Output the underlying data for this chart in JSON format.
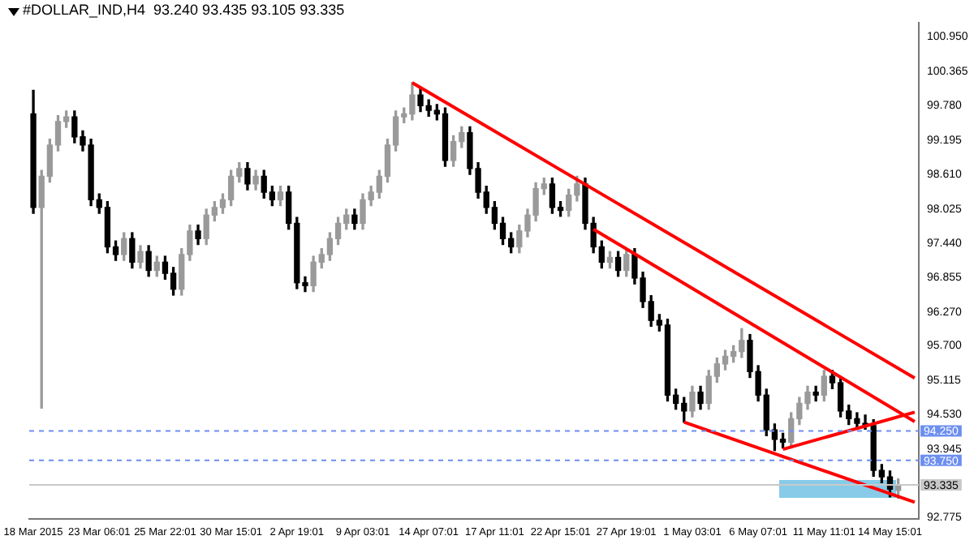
{
  "chart_data": {
    "type": "candlestick",
    "title": "#DOLLAR_IND,H4  93.240 93.435 93.105 93.335",
    "categories": [
      "18 Mar 2015",
      null,
      null,
      null,
      null,
      null,
      null,
      null,
      "23 Mar 06:01",
      null,
      null,
      null,
      null,
      null,
      null,
      null,
      "25 Mar 22:01",
      null,
      null,
      null,
      null,
      null,
      null,
      null,
      "30 Mar 15:01",
      null,
      null,
      null,
      null,
      null,
      null,
      null,
      "2 Apr 19:01",
      null,
      null,
      null,
      null,
      null,
      null,
      null,
      "9 Apr 03:01",
      null,
      null,
      null,
      null,
      null,
      null,
      null,
      "14 Apr 07:01",
      null,
      null,
      null,
      null,
      null,
      null,
      null,
      "17 Apr 11:01",
      null,
      null,
      null,
      null,
      null,
      null,
      null,
      "22 Apr 15:01",
      null,
      null,
      null,
      null,
      null,
      null,
      null,
      "27 Apr 19:01",
      null,
      null,
      null,
      null,
      null,
      null,
      null,
      "1 May 03:01",
      null,
      null,
      null,
      null,
      null,
      null,
      null,
      "6 May 07:01",
      null,
      null,
      null,
      null,
      null,
      null,
      null,
      "11 May 11:01",
      null,
      null,
      null,
      null,
      null,
      null,
      null,
      "14 May 15:01",
      null,
      null,
      null
    ],
    "ohlc": [
      [
        99.64,
        100.04,
        97.95,
        98.05
      ],
      [
        98.05,
        98.68,
        94.64,
        98.58
      ],
      [
        98.58,
        99.21,
        98.48,
        99.11
      ],
      [
        99.11,
        99.61,
        99.01,
        99.51
      ],
      [
        99.51,
        99.69,
        99.41,
        99.59
      ],
      [
        99.59,
        99.69,
        99.15,
        99.25
      ],
      [
        99.25,
        99.35,
        99.01,
        99.11
      ],
      [
        99.11,
        99.21,
        98.08,
        98.18
      ],
      [
        98.18,
        98.28,
        97.95,
        98.05
      ],
      [
        98.05,
        98.15,
        97.28,
        97.38
      ],
      [
        97.38,
        97.48,
        97.15,
        97.25
      ],
      [
        97.25,
        97.62,
        97.15,
        97.52
      ],
      [
        97.52,
        97.62,
        97.02,
        97.12
      ],
      [
        97.12,
        97.4,
        97.02,
        97.3
      ],
      [
        97.3,
        97.4,
        96.88,
        96.98
      ],
      [
        96.98,
        97.22,
        96.88,
        97.12
      ],
      [
        97.12,
        97.22,
        96.83,
        96.93
      ],
      [
        96.93,
        97.03,
        96.56,
        96.66
      ],
      [
        96.66,
        97.35,
        96.56,
        97.25
      ],
      [
        97.25,
        97.75,
        97.15,
        97.65
      ],
      [
        97.65,
        97.75,
        97.42,
        97.52
      ],
      [
        97.52,
        98.02,
        97.42,
        97.92
      ],
      [
        97.92,
        98.15,
        97.82,
        98.05
      ],
      [
        98.05,
        98.28,
        97.95,
        98.18
      ],
      [
        98.18,
        98.68,
        98.08,
        98.58
      ],
      [
        98.58,
        98.81,
        98.48,
        98.71
      ],
      [
        98.71,
        98.81,
        98.35,
        98.45
      ],
      [
        98.45,
        98.68,
        98.35,
        98.58
      ],
      [
        98.58,
        98.68,
        98.21,
        98.31
      ],
      [
        98.31,
        98.41,
        98.08,
        98.18
      ],
      [
        98.18,
        98.41,
        98.08,
        98.31
      ],
      [
        98.31,
        98.41,
        97.68,
        97.78
      ],
      [
        97.78,
        97.88,
        96.67,
        96.77
      ],
      [
        96.77,
        96.87,
        96.62,
        96.72
      ],
      [
        96.72,
        97.22,
        96.62,
        97.12
      ],
      [
        97.12,
        97.35,
        97.02,
        97.25
      ],
      [
        97.25,
        97.62,
        97.15,
        97.52
      ],
      [
        97.52,
        97.88,
        97.42,
        97.78
      ],
      [
        97.78,
        98.02,
        97.68,
        97.92
      ],
      [
        97.92,
        98.02,
        97.68,
        97.78
      ],
      [
        97.78,
        98.28,
        97.68,
        98.18
      ],
      [
        98.18,
        98.41,
        98.08,
        98.31
      ],
      [
        98.31,
        98.68,
        98.21,
        98.58
      ],
      [
        98.58,
        99.21,
        98.48,
        99.11
      ],
      [
        99.11,
        99.69,
        99.01,
        99.59
      ],
      [
        99.59,
        99.74,
        99.49,
        99.64
      ],
      [
        99.64,
        100.17,
        99.54,
        99.96
      ],
      [
        99.96,
        100.06,
        99.68,
        99.78
      ],
      [
        99.78,
        99.88,
        99.6,
        99.7
      ],
      [
        99.7,
        99.8,
        99.54,
        99.64
      ],
      [
        99.64,
        99.74,
        98.75,
        98.85
      ],
      [
        98.85,
        99.27,
        98.75,
        99.17
      ],
      [
        99.17,
        99.42,
        99.07,
        99.32
      ],
      [
        99.32,
        99.42,
        98.61,
        98.71
      ],
      [
        98.71,
        98.81,
        98.21,
        98.31
      ],
      [
        98.31,
        98.41,
        97.95,
        98.05
      ],
      [
        98.05,
        98.15,
        97.68,
        97.78
      ],
      [
        97.78,
        97.88,
        97.42,
        97.52
      ],
      [
        97.52,
        97.62,
        97.28,
        97.38
      ],
      [
        97.38,
        97.75,
        97.28,
        97.65
      ],
      [
        97.65,
        98.02,
        97.55,
        97.92
      ],
      [
        97.92,
        98.47,
        97.82,
        98.37
      ],
      [
        98.37,
        98.55,
        98.27,
        98.45
      ],
      [
        98.45,
        98.55,
        97.95,
        98.05
      ],
      [
        98.05,
        98.15,
        97.9,
        98.0
      ],
      [
        98.0,
        98.36,
        97.9,
        98.26
      ],
      [
        98.26,
        98.58,
        98.16,
        98.45
      ],
      [
        98.45,
        98.55,
        97.68,
        97.78
      ],
      [
        97.78,
        97.88,
        97.28,
        97.38
      ],
      [
        97.38,
        97.48,
        97.02,
        97.12
      ],
      [
        97.12,
        97.3,
        97.02,
        97.2
      ],
      [
        97.2,
        97.3,
        96.88,
        96.98
      ],
      [
        96.98,
        97.35,
        96.88,
        97.25
      ],
      [
        97.25,
        97.35,
        96.75,
        96.85
      ],
      [
        96.85,
        96.95,
        96.35,
        96.45
      ],
      [
        96.45,
        96.55,
        96.03,
        96.13
      ],
      [
        96.13,
        96.23,
        95.95,
        96.05
      ],
      [
        96.05,
        96.15,
        94.76,
        94.86
      ],
      [
        94.86,
        94.96,
        94.62,
        94.72
      ],
      [
        94.72,
        94.82,
        94.4,
        94.59
      ],
      [
        94.59,
        95.01,
        94.49,
        94.91
      ],
      [
        94.91,
        95.01,
        94.62,
        94.72
      ],
      [
        94.72,
        95.28,
        94.62,
        95.18
      ],
      [
        95.18,
        95.49,
        95.08,
        95.39
      ],
      [
        95.39,
        95.62,
        95.29,
        95.52
      ],
      [
        95.52,
        95.7,
        95.42,
        95.6
      ],
      [
        95.6,
        95.99,
        95.5,
        95.79
      ],
      [
        95.79,
        95.89,
        95.16,
        95.26
      ],
      [
        95.26,
        95.36,
        94.76,
        94.86
      ],
      [
        94.86,
        94.96,
        94.17,
        94.27
      ],
      [
        94.27,
        94.37,
        93.92,
        94.11
      ],
      [
        94.11,
        94.21,
        93.96,
        94.06
      ],
      [
        94.06,
        94.56,
        93.96,
        94.46
      ],
      [
        94.46,
        94.82,
        94.36,
        94.72
      ],
      [
        94.72,
        95.01,
        94.62,
        94.91
      ],
      [
        94.91,
        95.01,
        94.76,
        94.86
      ],
      [
        94.86,
        95.28,
        94.76,
        95.18
      ],
      [
        95.18,
        95.28,
        94.97,
        95.07
      ],
      [
        95.07,
        95.17,
        94.49,
        94.59
      ],
      [
        94.59,
        94.69,
        94.36,
        94.46
      ],
      [
        94.46,
        94.56,
        94.28,
        94.38
      ],
      [
        94.38,
        94.52,
        94.28,
        94.34
      ],
      [
        94.34,
        94.44,
        93.48,
        93.58
      ],
      [
        93.58,
        93.68,
        93.37,
        93.47
      ],
      [
        93.47,
        93.57,
        93.13,
        93.26
      ],
      [
        93.24,
        93.435,
        93.105,
        93.335
      ],
      null,
      null
    ],
    "colors": [
      "#000000",
      "#9a9a9a",
      "#9a9a9a",
      "#9a9a9a",
      "#9a9a9a",
      "#000000",
      "#000000",
      "#000000",
      "#000000",
      "#000000",
      "#000000",
      "#9a9a9a",
      "#000000",
      "#9a9a9a",
      "#000000",
      "#9a9a9a",
      "#000000",
      "#000000",
      "#9a9a9a",
      "#9a9a9a",
      "#000000",
      "#9a9a9a",
      "#9a9a9a",
      "#9a9a9a",
      "#9a9a9a",
      "#9a9a9a",
      "#000000",
      "#9a9a9a",
      "#000000",
      "#000000",
      "#9a9a9a",
      "#000000",
      "#000000",
      "#000000",
      "#9a9a9a",
      "#9a9a9a",
      "#9a9a9a",
      "#9a9a9a",
      "#9a9a9a",
      "#000000",
      "#9a9a9a",
      "#9a9a9a",
      "#9a9a9a",
      "#9a9a9a",
      "#9a9a9a",
      "#9a9a9a",
      "#9a9a9a",
      "#000000",
      "#000000",
      "#000000",
      "#000000",
      "#9a9a9a",
      "#9a9a9a",
      "#000000",
      "#000000",
      "#000000",
      "#000000",
      "#000000",
      "#000000",
      "#9a9a9a",
      "#9a9a9a",
      "#9a9a9a",
      "#9a9a9a",
      "#000000",
      "#000000",
      "#9a9a9a",
      "#9a9a9a",
      "#000000",
      "#000000",
      "#000000",
      "#9a9a9a",
      "#000000",
      "#9a9a9a",
      "#000000",
      "#000000",
      "#000000",
      "#000000",
      "#000000",
      "#000000",
      "#000000",
      "#9a9a9a",
      "#000000",
      "#9a9a9a",
      "#9a9a9a",
      "#9a9a9a",
      "#9a9a9a",
      "#9a9a9a",
      "#000000",
      "#000000",
      "#000000",
      "#000000",
      "#000000",
      "#9a9a9a",
      "#9a9a9a",
      "#9a9a9a",
      "#000000",
      "#9a9a9a",
      "#000000",
      "#000000",
      "#000000",
      "#000000",
      "#000000",
      "#000000",
      "#000000",
      "#000000",
      "#9a9a9a",
      "#000000",
      "#000000"
    ],
    "series": [
      {
        "type": "line",
        "color": "#ff0000",
        "values": [
          null,
          null,
          null,
          null,
          null,
          null,
          null,
          null,
          null,
          null,
          null,
          null,
          null,
          null,
          null,
          null,
          null,
          null,
          null,
          null,
          null,
          null,
          null,
          null,
          null,
          null,
          null,
          null,
          null,
          null,
          null,
          null,
          null,
          null,
          null,
          null,
          null,
          null,
          null,
          null,
          null,
          null,
          null,
          null,
          null,
          null,
          100.17,
          null,
          null,
          null,
          null,
          null,
          null,
          null,
          null,
          null,
          null,
          null,
          null,
          null,
          null,
          null,
          null,
          null,
          null,
          null,
          null,
          null,
          null,
          null,
          null,
          null,
          null,
          null,
          null,
          null,
          null,
          null,
          null,
          null,
          null,
          null,
          null,
          null,
          null,
          null,
          null,
          null,
          null,
          null,
          null,
          null,
          null,
          null,
          null,
          null,
          null,
          null,
          null,
          null,
          null,
          null,
          null,
          null,
          null,
          null,
          null,
          95.15
        ]
      },
      {
        "type": "line",
        "color": "#ff0000",
        "values": [
          null,
          null,
          null,
          null,
          null,
          null,
          null,
          null,
          null,
          null,
          null,
          null,
          null,
          null,
          null,
          null,
          null,
          null,
          null,
          null,
          null,
          null,
          null,
          null,
          null,
          null,
          null,
          null,
          null,
          null,
          null,
          null,
          null,
          null,
          null,
          null,
          null,
          null,
          null,
          null,
          null,
          null,
          null,
          null,
          null,
          null,
          null,
          null,
          null,
          null,
          null,
          null,
          null,
          null,
          null,
          null,
          null,
          null,
          null,
          null,
          null,
          null,
          null,
          null,
          null,
          null,
          null,
          null,
          97.68,
          null,
          null,
          null,
          null,
          null,
          null,
          null,
          null,
          null,
          null,
          null,
          null,
          null,
          null,
          null,
          null,
          null,
          null,
          null,
          null,
          null,
          null,
          null,
          null,
          null,
          null,
          null,
          null,
          null,
          null,
          null,
          null,
          null,
          null,
          null,
          null,
          null,
          null,
          94.41
        ]
      },
      {
        "type": "line",
        "color": "#ff0000",
        "values": [
          null,
          null,
          null,
          null,
          null,
          null,
          null,
          null,
          null,
          null,
          null,
          null,
          null,
          null,
          null,
          null,
          null,
          null,
          null,
          null,
          null,
          null,
          null,
          null,
          null,
          null,
          null,
          null,
          null,
          null,
          null,
          null,
          null,
          null,
          null,
          null,
          null,
          null,
          null,
          null,
          null,
          null,
          null,
          null,
          null,
          null,
          null,
          null,
          null,
          null,
          null,
          null,
          null,
          null,
          null,
          null,
          null,
          null,
          null,
          null,
          null,
          null,
          null,
          null,
          null,
          null,
          null,
          null,
          null,
          null,
          null,
          null,
          null,
          null,
          null,
          null,
          null,
          null,
          null,
          94.4,
          null,
          null,
          null,
          null,
          null,
          null,
          null,
          null,
          null,
          null,
          null,
          null,
          null,
          null,
          null,
          null,
          null,
          null,
          null,
          null,
          null,
          null,
          null,
          null,
          null,
          null,
          null,
          93.04
        ]
      },
      {
        "type": "line",
        "color": "#ff0000",
        "values": [
          null,
          null,
          null,
          null,
          null,
          null,
          null,
          null,
          null,
          null,
          null,
          null,
          null,
          null,
          null,
          null,
          null,
          null,
          null,
          null,
          null,
          null,
          null,
          null,
          null,
          null,
          null,
          null,
          null,
          null,
          null,
          null,
          null,
          null,
          null,
          null,
          null,
          null,
          null,
          null,
          null,
          null,
          null,
          null,
          null,
          null,
          null,
          null,
          null,
          null,
          null,
          null,
          null,
          null,
          null,
          null,
          null,
          null,
          null,
          null,
          null,
          null,
          null,
          null,
          null,
          null,
          null,
          null,
          null,
          null,
          null,
          null,
          null,
          null,
          null,
          null,
          null,
          null,
          null,
          null,
          null,
          null,
          null,
          null,
          null,
          null,
          null,
          null,
          null,
          null,
          null,
          93.94,
          null,
          null,
          null,
          null,
          null,
          null,
          null,
          null,
          null,
          null,
          null,
          null,
          null,
          null,
          null,
          94.57
        ]
      }
    ],
    "ylim": [
      92.75,
      101.19
    ],
    "yticks": [
      {
        "value": 100.95,
        "label": "100.950"
      },
      {
        "value": 100.365,
        "label": "100.365"
      },
      {
        "value": 99.78,
        "label": "99.780"
      },
      {
        "value": 99.195,
        "label": "99.195"
      },
      {
        "value": 98.61,
        "label": "98.610"
      },
      {
        "value": 98.025,
        "label": "98.025"
      },
      {
        "value": 97.44,
        "label": "97.440"
      },
      {
        "value": 96.855,
        "label": "96.855"
      },
      {
        "value": 96.27,
        "label": "96.270"
      },
      {
        "value": 95.7,
        "label": "95.700"
      },
      {
        "value": 95.115,
        "label": "95.115"
      },
      {
        "value": 94.53,
        "label": "94.530"
      },
      {
        "value": 93.945,
        "label": "93.945"
      },
      {
        "value": 92.775,
        "label": "92.775"
      }
    ],
    "ref_lines": [
      {
        "axis": "y",
        "value": 94.25,
        "label": "94.250",
        "color": "#6d8ff0",
        "line_style": "dashed"
      },
      {
        "axis": "y",
        "value": 93.75,
        "label": "93.750",
        "color": "#6d8ff0",
        "line_style": "dashed"
      },
      {
        "axis": "y",
        "value": 93.335,
        "label": "93.335",
        "color": "#c8c8c8",
        "line_style": "solid"
      }
    ],
    "grid": false,
    "legend": false
  }
}
